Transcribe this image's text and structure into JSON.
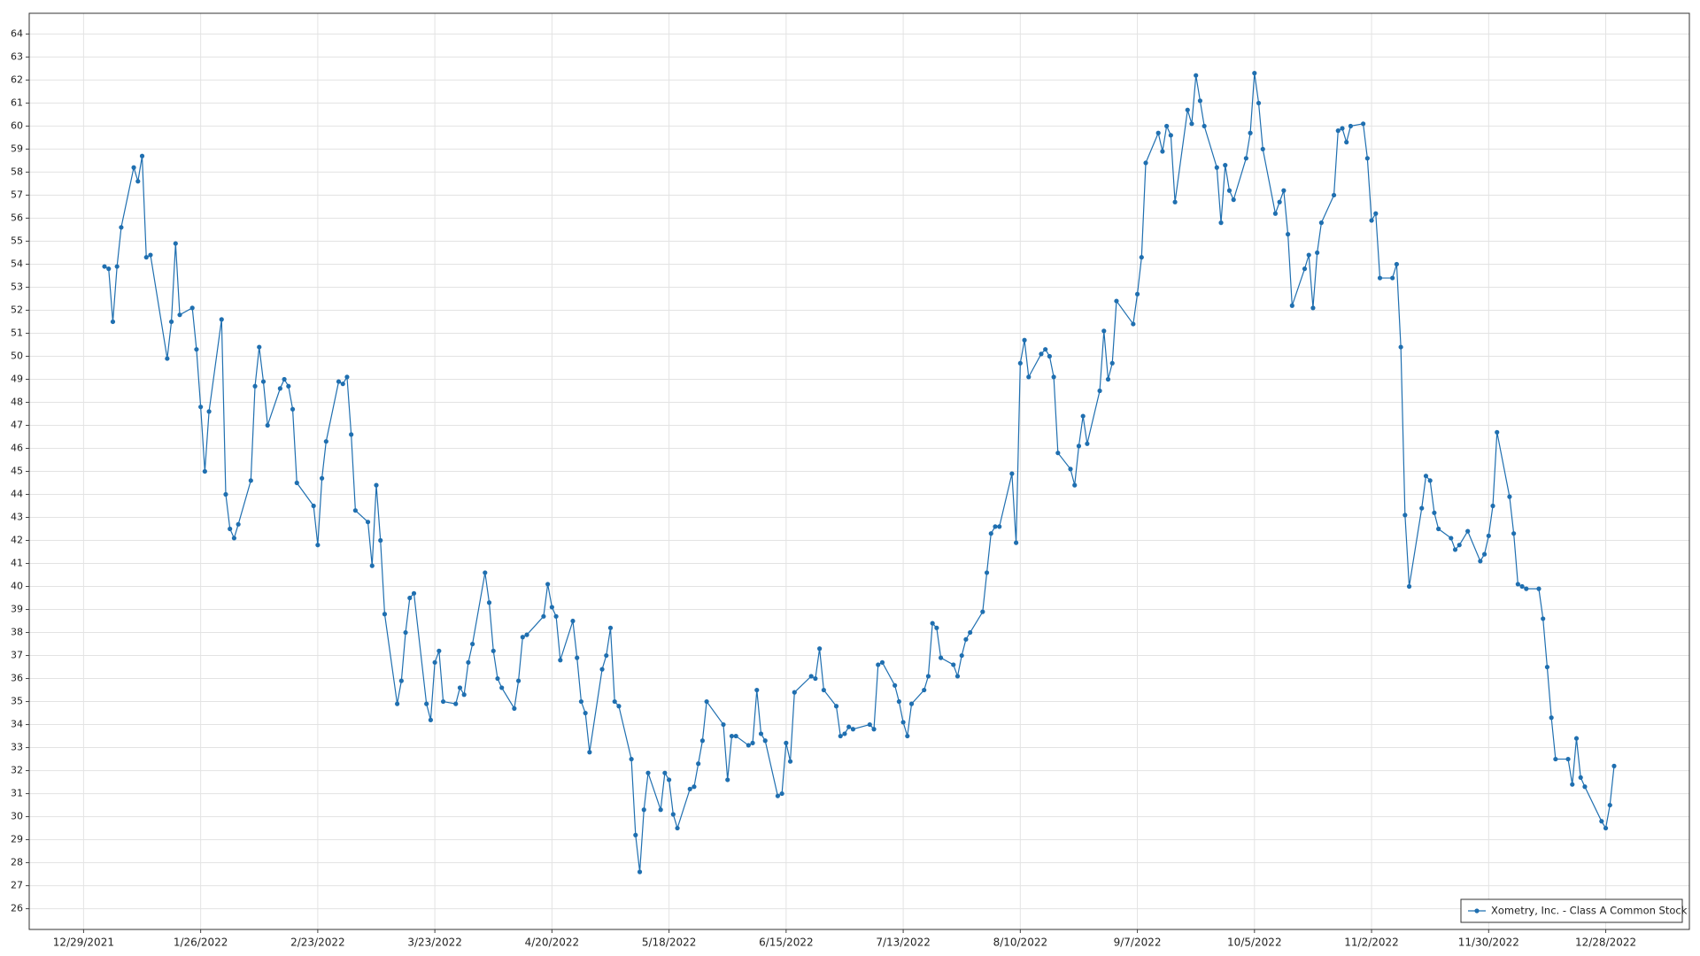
{
  "chart_data": {
    "type": "line",
    "x": [
      "1/3/2022",
      "1/4/2022",
      "1/5/2022",
      "1/6/2022",
      "1/7/2022",
      "1/10/2022",
      "1/11/2022",
      "1/12/2022",
      "1/13/2022",
      "1/14/2022",
      "1/18/2022",
      "1/19/2022",
      "1/20/2022",
      "1/21/2022",
      "1/24/2022",
      "1/25/2022",
      "1/26/2022",
      "1/27/2022",
      "1/28/2022",
      "1/31/2022",
      "2/1/2022",
      "2/2/2022",
      "2/3/2022",
      "2/4/2022",
      "2/7/2022",
      "2/8/2022",
      "2/9/2022",
      "2/10/2022",
      "2/11/2022",
      "2/14/2022",
      "2/15/2022",
      "2/16/2022",
      "2/17/2022",
      "2/18/2022",
      "2/22/2022",
      "2/23/2022",
      "2/24/2022",
      "2/25/2022",
      "2/28/2022",
      "3/1/2022",
      "3/2/2022",
      "3/3/2022",
      "3/4/2022",
      "3/7/2022",
      "3/8/2022",
      "3/9/2022",
      "3/10/2022",
      "3/11/2022",
      "3/14/2022",
      "3/15/2022",
      "3/16/2022",
      "3/17/2022",
      "3/18/2022",
      "3/21/2022",
      "3/22/2022",
      "3/23/2022",
      "3/24/2022",
      "3/25/2022",
      "3/28/2022",
      "3/29/2022",
      "3/30/2022",
      "3/31/2022",
      "4/1/2022",
      "4/4/2022",
      "4/5/2022",
      "4/6/2022",
      "4/7/2022",
      "4/8/2022",
      "4/11/2022",
      "4/12/2022",
      "4/13/2022",
      "4/14/2022",
      "4/18/2022",
      "4/19/2022",
      "4/20/2022",
      "4/21/2022",
      "4/22/2022",
      "4/25/2022",
      "4/26/2022",
      "4/27/2022",
      "4/28/2022",
      "4/29/2022",
      "5/2/2022",
      "5/3/2022",
      "5/4/2022",
      "5/5/2022",
      "5/6/2022",
      "5/9/2022",
      "5/10/2022",
      "5/11/2022",
      "5/12/2022",
      "5/13/2022",
      "5/16/2022",
      "5/17/2022",
      "5/18/2022",
      "5/19/2022",
      "5/20/2022",
      "5/23/2022",
      "5/24/2022",
      "5/25/2022",
      "5/26/2022",
      "5/27/2022",
      "5/31/2022",
      "6/1/2022",
      "6/2/2022",
      "6/3/2022",
      "6/6/2022",
      "6/7/2022",
      "6/8/2022",
      "6/9/2022",
      "6/10/2022",
      "6/13/2022",
      "6/14/2022",
      "6/15/2022",
      "6/16/2022",
      "6/17/2022",
      "6/21/2022",
      "6/22/2022",
      "6/23/2022",
      "6/24/2022",
      "6/27/2022",
      "6/28/2022",
      "6/29/2022",
      "6/30/2022",
      "7/1/2022",
      "7/5/2022",
      "7/6/2022",
      "7/7/2022",
      "7/8/2022",
      "7/11/2022",
      "7/12/2022",
      "7/13/2022",
      "7/14/2022",
      "7/15/2022",
      "7/18/2022",
      "7/19/2022",
      "7/20/2022",
      "7/21/2022",
      "7/22/2022",
      "7/25/2022",
      "7/26/2022",
      "7/27/2022",
      "7/28/2022",
      "7/29/2022",
      "8/1/2022",
      "8/2/2022",
      "8/3/2022",
      "8/4/2022",
      "8/5/2022",
      "8/8/2022",
      "8/9/2022",
      "8/10/2022",
      "8/11/2022",
      "8/12/2022",
      "8/15/2022",
      "8/16/2022",
      "8/17/2022",
      "8/18/2022",
      "8/19/2022",
      "8/22/2022",
      "8/23/2022",
      "8/24/2022",
      "8/25/2022",
      "8/26/2022",
      "8/29/2022",
      "8/30/2022",
      "8/31/2022",
      "9/1/2022",
      "9/2/2022",
      "9/6/2022",
      "9/7/2022",
      "9/8/2022",
      "9/9/2022",
      "9/12/2022",
      "9/13/2022",
      "9/14/2022",
      "9/15/2022",
      "9/16/2022",
      "9/19/2022",
      "9/20/2022",
      "9/21/2022",
      "9/22/2022",
      "9/23/2022",
      "9/26/2022",
      "9/27/2022",
      "9/28/2022",
      "9/29/2022",
      "9/30/2022",
      "10/3/2022",
      "10/4/2022",
      "10/5/2022",
      "10/6/2022",
      "10/7/2022",
      "10/10/2022",
      "10/11/2022",
      "10/12/2022",
      "10/13/2022",
      "10/14/2022",
      "10/17/2022",
      "10/18/2022",
      "10/19/2022",
      "10/20/2022",
      "10/21/2022",
      "10/24/2022",
      "10/25/2022",
      "10/26/2022",
      "10/27/2022",
      "10/28/2022",
      "10/31/2022",
      "11/1/2022",
      "11/2/2022",
      "11/3/2022",
      "11/4/2022",
      "11/7/2022",
      "11/8/2022",
      "11/9/2022",
      "11/10/2022",
      "11/11/2022",
      "11/14/2022",
      "11/15/2022",
      "11/16/2022",
      "11/17/2022",
      "11/18/2022",
      "11/21/2022",
      "11/22/2022",
      "11/23/2022",
      "11/25/2022",
      "11/28/2022",
      "11/29/2022",
      "11/30/2022",
      "12/1/2022",
      "12/2/2022",
      "12/5/2022",
      "12/6/2022",
      "12/7/2022",
      "12/8/2022",
      "12/9/2022",
      "12/12/2022",
      "12/13/2022",
      "12/14/2022",
      "12/15/2022",
      "12/16/2022",
      "12/19/2022",
      "12/20/2022",
      "12/21/2022",
      "12/22/2022",
      "12/23/2022",
      "12/27/2022",
      "12/28/2022",
      "12/29/2022",
      "12/30/2022"
    ],
    "series": [
      {
        "name": "Xometry, Inc. - Class A Common Stock",
        "color": "#1f6fb0",
        "values": [
          53.9,
          53.8,
          51.5,
          53.9,
          55.6,
          58.2,
          57.6,
          58.7,
          54.3,
          54.4,
          49.9,
          51.5,
          54.9,
          51.8,
          52.1,
          50.3,
          47.8,
          45.0,
          47.6,
          51.6,
          44.0,
          42.5,
          42.1,
          42.7,
          44.6,
          48.7,
          50.4,
          48.9,
          47.0,
          48.6,
          49.0,
          48.7,
          47.7,
          44.5,
          43.5,
          41.8,
          44.7,
          46.3,
          48.9,
          48.8,
          49.1,
          46.6,
          43.3,
          42.8,
          40.9,
          44.4,
          42.0,
          38.8,
          34.9,
          35.9,
          38.0,
          39.5,
          39.7,
          34.9,
          34.2,
          36.7,
          37.2,
          35.0,
          34.9,
          35.6,
          35.3,
          36.7,
          37.5,
          40.6,
          39.3,
          37.2,
          36.0,
          35.6,
          34.7,
          35.9,
          37.8,
          37.9,
          38.7,
          40.1,
          39.1,
          38.7,
          36.8,
          38.5,
          36.9,
          35.0,
          34.5,
          32.8,
          36.4,
          37.0,
          38.2,
          35.0,
          34.8,
          32.5,
          29.2,
          27.6,
          30.3,
          31.9,
          30.3,
          31.9,
          31.6,
          30.1,
          29.5,
          31.2,
          31.3,
          32.3,
          33.3,
          35.0,
          34.0,
          31.6,
          33.5,
          33.5,
          33.1,
          33.2,
          35.5,
          33.6,
          33.3,
          30.9,
          31.0,
          33.2,
          32.4,
          35.4,
          36.1,
          36.0,
          37.3,
          35.5,
          34.8,
          33.5,
          33.6,
          33.9,
          33.8,
          34.0,
          33.8,
          36.6,
          36.7,
          35.7,
          35.0,
          34.1,
          33.5,
          34.9,
          35.5,
          36.1,
          38.4,
          38.2,
          36.9,
          36.6,
          36.1,
          37.0,
          37.7,
          38.0,
          38.9,
          40.6,
          42.3,
          42.6,
          42.6,
          44.9,
          41.9,
          49.7,
          50.7,
          49.1,
          50.1,
          50.3,
          50.0,
          49.1,
          45.8,
          45.1,
          44.4,
          46.1,
          47.4,
          46.2,
          48.5,
          51.1,
          49.0,
          49.7,
          52.4,
          51.4,
          52.7,
          54.3,
          58.4,
          59.7,
          58.9,
          60.0,
          59.6,
          56.7,
          60.7,
          60.1,
          62.2,
          61.1,
          60.0,
          58.2,
          55.8,
          58.3,
          57.2,
          56.8,
          58.6,
          59.7,
          62.3,
          61.0,
          59.0,
          56.2,
          56.7,
          57.2,
          55.3,
          52.2,
          53.8,
          54.4,
          52.1,
          54.5,
          55.8,
          57.0,
          59.8,
          59.9,
          59.3,
          60.0,
          60.1,
          58.6,
          55.9,
          56.2,
          53.4,
          53.4,
          54.0,
          50.4,
          43.1,
          40.0,
          43.4,
          44.8,
          44.6,
          43.2,
          42.5,
          42.1,
          41.6,
          41.8,
          42.4,
          41.1,
          41.4,
          42.2,
          43.5,
          46.7,
          43.9,
          42.3,
          40.1,
          40.0,
          39.9,
          39.9,
          38.6,
          36.5,
          34.3,
          32.5,
          32.5,
          31.4,
          33.4,
          31.7,
          31.3,
          29.8,
          29.5,
          30.5,
          32.2
        ]
      }
    ],
    "xlim": [
      "12/16/2021",
      "1/17/2023"
    ],
    "xticks": [
      "12/29/2021",
      "1/26/2022",
      "2/23/2022",
      "3/23/2022",
      "4/20/2022",
      "5/18/2022",
      "6/15/2022",
      "7/13/2022",
      "8/10/2022",
      "9/7/2022",
      "10/5/2022",
      "11/2/2022",
      "11/30/2022",
      "12/28/2022"
    ],
    "ylim": [
      25.1,
      64.9
    ],
    "yticks": [
      26,
      27,
      28,
      29,
      30,
      31,
      32,
      33,
      34,
      35,
      36,
      37,
      38,
      39,
      40,
      41,
      42,
      43,
      44,
      45,
      46,
      47,
      48,
      49,
      50,
      51,
      52,
      53,
      54,
      55,
      56,
      57,
      58,
      59,
      60,
      61,
      62,
      63,
      64
    ],
    "grid": true,
    "legend": "lower right"
  }
}
